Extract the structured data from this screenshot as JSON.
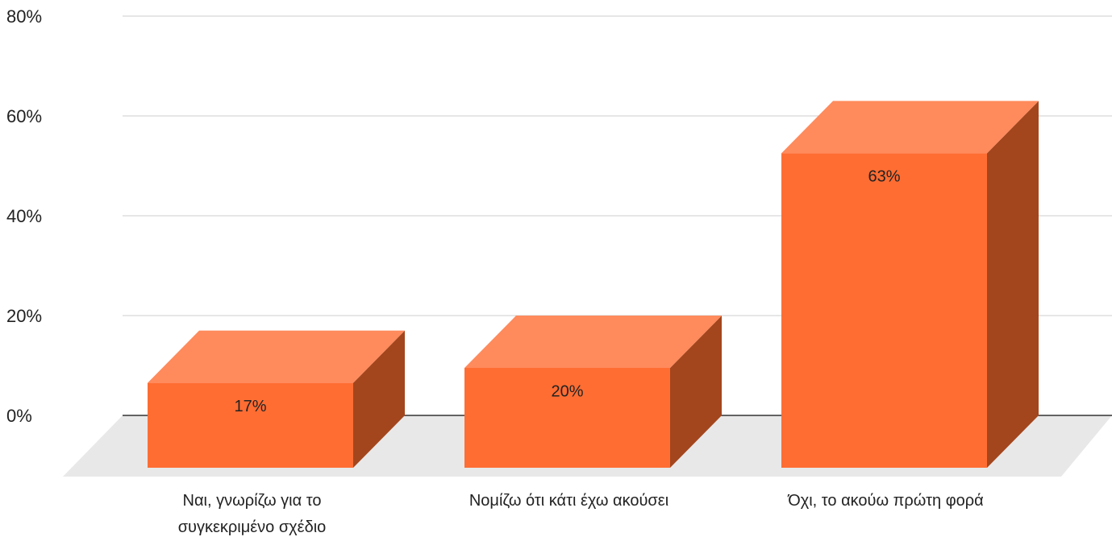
{
  "chart_data": {
    "type": "bar3d",
    "categories": [
      "Ναι, γνωρίζω για το συγκεκριμένο σχέδιο",
      "Νομίζω ότι κάτι έχω ακούσει",
      "Όχι, το ακούω πρώτη φορά"
    ],
    "values": [
      17,
      20,
      63
    ],
    "value_labels": [
      "17%",
      "20%",
      "63%"
    ],
    "color": "#ff6d33",
    "ylim": [
      0,
      80
    ],
    "yticks": [
      {
        "value": 0,
        "label": "0%"
      },
      {
        "value": 20,
        "label": "20%"
      },
      {
        "value": 40,
        "label": "40%"
      },
      {
        "value": 60,
        "label": "60%"
      },
      {
        "value": 80,
        "label": "80%"
      }
    ],
    "grid": true
  }
}
